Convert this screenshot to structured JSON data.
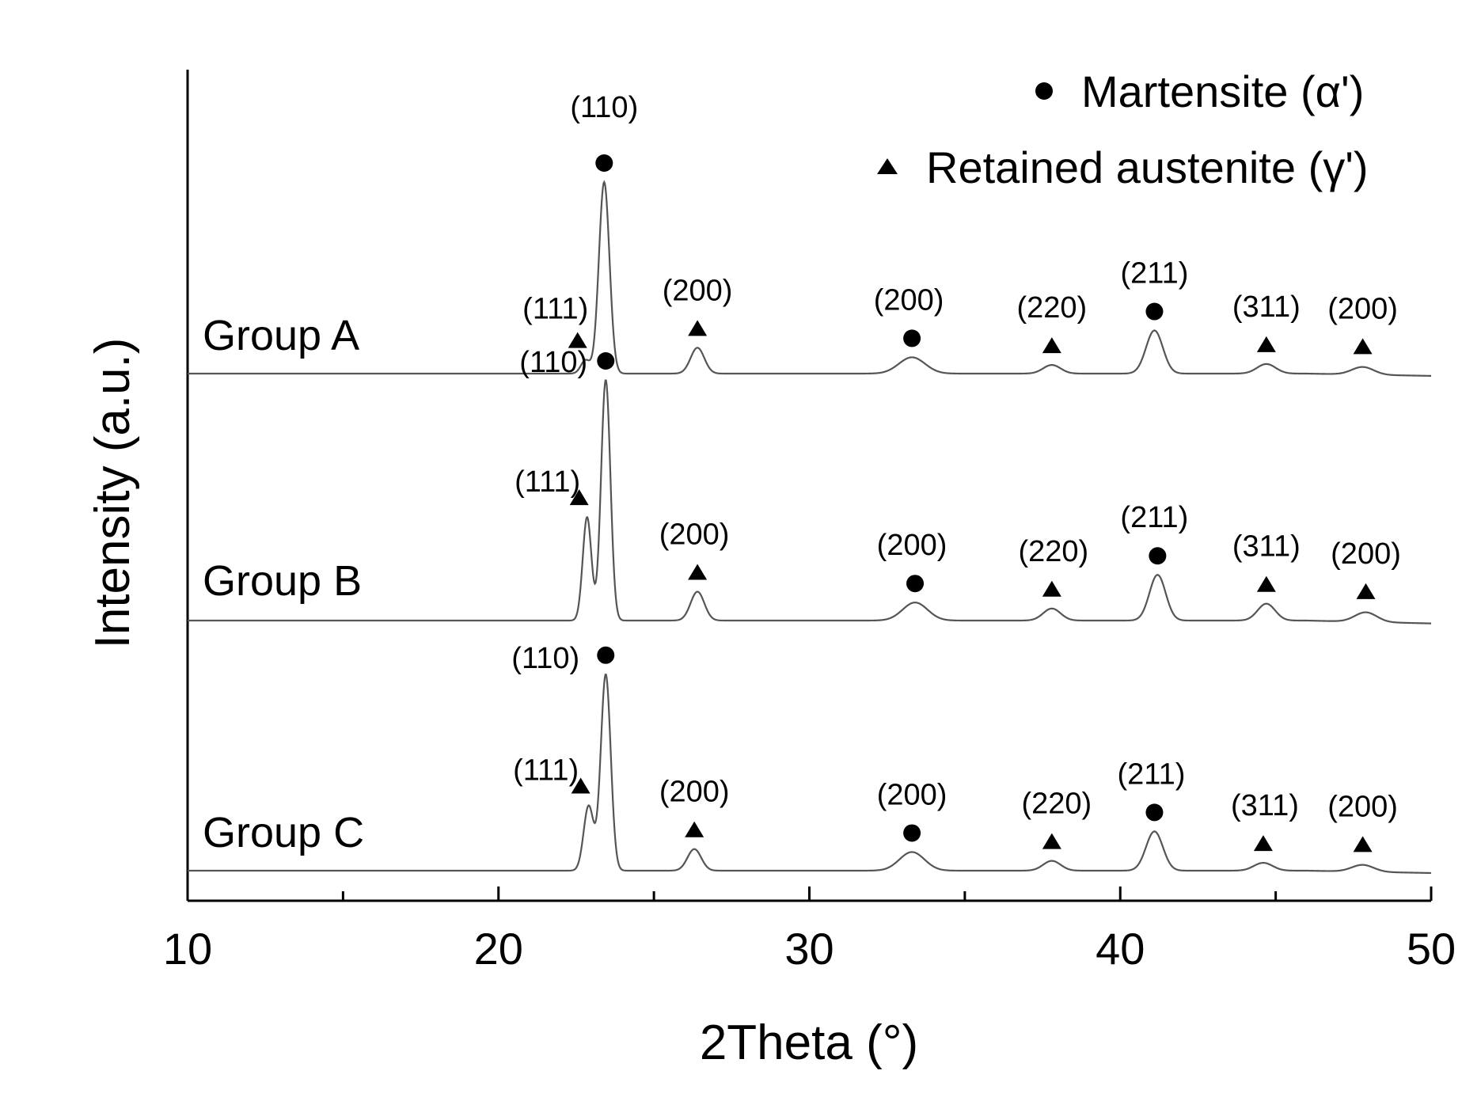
{
  "chart_data": {
    "type": "line",
    "title": "",
    "xlabel": "2Theta (°)",
    "ylabel": "Intensity (a.u.)",
    "xlim": [
      10,
      50
    ],
    "x_ticks": [
      "10",
      "20",
      "30",
      "40",
      "50"
    ],
    "legend": {
      "position": "top-right",
      "entries": [
        {
          "marker": "circle",
          "label": "Martensite (α')"
        },
        {
          "marker": "triangle",
          "label": "Retained austenite (γ')"
        }
      ]
    },
    "series": [
      {
        "name": "Group A",
        "peaks": [
          {
            "x": 22.8,
            "height": 0.07,
            "width": 0.15,
            "phase": "austenite",
            "hkl": "(111)"
          },
          {
            "x": 23.4,
            "height": 1.0,
            "width": 0.17,
            "phase": "martensite",
            "hkl": "(110)"
          },
          {
            "x": 26.4,
            "height": 0.135,
            "width": 0.22,
            "phase": "austenite",
            "hkl": "(200)"
          },
          {
            "x": 33.3,
            "height": 0.085,
            "width": 0.42,
            "phase": "martensite",
            "hkl": "(200)"
          },
          {
            "x": 37.8,
            "height": 0.045,
            "width": 0.28,
            "phase": "austenite",
            "hkl": "(220)"
          },
          {
            "x": 41.1,
            "height": 0.225,
            "width": 0.27,
            "phase": "martensite",
            "hkl": "(211)"
          },
          {
            "x": 44.7,
            "height": 0.05,
            "width": 0.3,
            "phase": "austenite",
            "hkl": "(311)"
          },
          {
            "x": 47.8,
            "height": 0.04,
            "width": 0.35,
            "phase": "austenite",
            "hkl": "(200)"
          }
        ]
      },
      {
        "name": "Group B",
        "peaks": [
          {
            "x": 22.85,
            "height": 0.43,
            "width": 0.14,
            "phase": "austenite",
            "hkl": "(111)"
          },
          {
            "x": 23.45,
            "height": 1.0,
            "width": 0.15,
            "phase": "martensite",
            "hkl": "(110)"
          },
          {
            "x": 26.4,
            "height": 0.12,
            "width": 0.22,
            "phase": "austenite",
            "hkl": "(200)"
          },
          {
            "x": 33.4,
            "height": 0.075,
            "width": 0.4,
            "phase": "martensite",
            "hkl": "(200)"
          },
          {
            "x": 37.8,
            "height": 0.05,
            "width": 0.28,
            "phase": "austenite",
            "hkl": "(220)"
          },
          {
            "x": 41.2,
            "height": 0.19,
            "width": 0.26,
            "phase": "martensite",
            "hkl": "(211)"
          },
          {
            "x": 44.7,
            "height": 0.07,
            "width": 0.28,
            "phase": "austenite",
            "hkl": "(311)"
          },
          {
            "x": 47.9,
            "height": 0.04,
            "width": 0.35,
            "phase": "austenite",
            "hkl": "(200)"
          }
        ]
      },
      {
        "name": "Group C",
        "peaks": [
          {
            "x": 22.9,
            "height": 0.33,
            "width": 0.16,
            "phase": "austenite",
            "hkl": "(111)"
          },
          {
            "x": 23.45,
            "height": 1.0,
            "width": 0.16,
            "phase": "martensite",
            "hkl": "(110)"
          },
          {
            "x": 26.3,
            "height": 0.11,
            "width": 0.22,
            "phase": "austenite",
            "hkl": "(200)"
          },
          {
            "x": 33.3,
            "height": 0.095,
            "width": 0.4,
            "phase": "martensite",
            "hkl": "(200)"
          },
          {
            "x": 37.8,
            "height": 0.05,
            "width": 0.28,
            "phase": "austenite",
            "hkl": "(220)"
          },
          {
            "x": 41.1,
            "height": 0.2,
            "width": 0.27,
            "phase": "martensite",
            "hkl": "(211)"
          },
          {
            "x": 44.6,
            "height": 0.04,
            "width": 0.3,
            "phase": "austenite",
            "hkl": "(311)"
          },
          {
            "x": 47.8,
            "height": 0.035,
            "width": 0.35,
            "phase": "austenite",
            "hkl": "(200)"
          }
        ]
      }
    ]
  }
}
